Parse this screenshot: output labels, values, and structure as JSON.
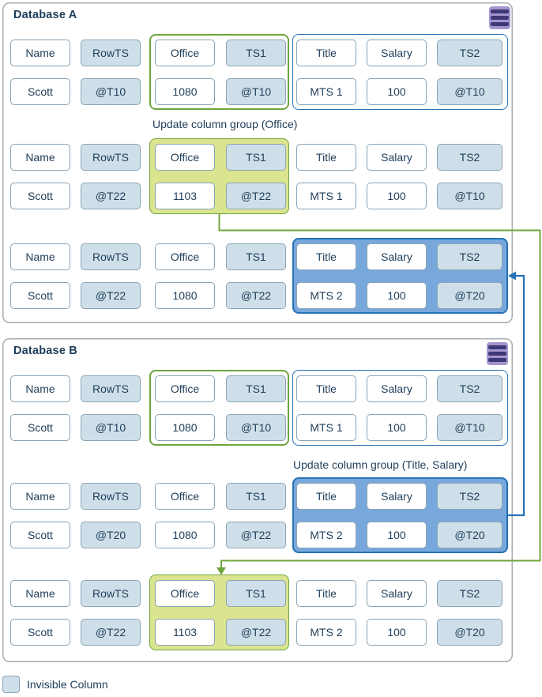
{
  "column_headers": [
    "Name",
    "RowTS",
    "Office",
    "TS1",
    "Title",
    "Salary",
    "TS2"
  ],
  "shaded_columns": [
    1,
    3,
    6
  ],
  "legend": {
    "label": "Invisible Column"
  },
  "colors": {
    "invisible_column_fill": "#cfdfe9",
    "cell_border": "#8aa4b6",
    "text": "#1e3d59",
    "green_group_border": "#6fa53c",
    "green_group_fill": "#dbe48e",
    "blue_group_border": "#2471b6",
    "blue_group_fill": "#78a8db",
    "panel_border": "#a9aeb2",
    "icon_purple_light": "#a595cd",
    "icon_purple_dark": "#3f3878"
  },
  "databases": {
    "a": {
      "title": "Database A",
      "update_label": "Update column group (Office)",
      "row_groups": [
        {
          "boxes": [
            {
              "style": "outline-green",
              "cols": [
                2,
                3
              ]
            },
            {
              "style": "outline-blue",
              "cols": [
                4,
                6
              ]
            }
          ],
          "values": [
            "Scott",
            "@T10",
            "1080",
            "@T10",
            "MTS 1",
            "100",
            "@T10"
          ]
        },
        {
          "boxes": [
            {
              "style": "fill-green",
              "cols": [
                2,
                3
              ]
            }
          ],
          "values": [
            "Scott",
            "@T22",
            "1103",
            "@T22",
            "MTS 1",
            "100",
            "@T10"
          ]
        },
        {
          "boxes": [
            {
              "style": "fill-blue",
              "cols": [
                4,
                6
              ]
            }
          ],
          "values": [
            "Scott",
            "@T22",
            "1080",
            "@T22",
            "MTS 2",
            "100",
            "@T20"
          ]
        }
      ]
    },
    "b": {
      "title": "Database B",
      "update_label": "Update column group (Title, Salary)",
      "row_groups": [
        {
          "boxes": [
            {
              "style": "outline-green",
              "cols": [
                2,
                3
              ]
            },
            {
              "style": "outline-blue",
              "cols": [
                4,
                6
              ]
            }
          ],
          "values": [
            "Scott",
            "@T10",
            "1080",
            "@T10",
            "MTS 1",
            "100",
            "@T10"
          ]
        },
        {
          "boxes": [
            {
              "style": "fill-blue",
              "cols": [
                4,
                6
              ]
            }
          ],
          "values": [
            "Scott",
            "@T20",
            "1080",
            "@T22",
            "MTS 2",
            "100",
            "@T20"
          ]
        },
        {
          "boxes": [
            {
              "style": "fill-green",
              "cols": [
                2,
                3
              ]
            }
          ],
          "values": [
            "Scott",
            "@T22",
            "1103",
            "@T22",
            "MTS 2",
            "100",
            "@T20"
          ]
        }
      ]
    }
  }
}
